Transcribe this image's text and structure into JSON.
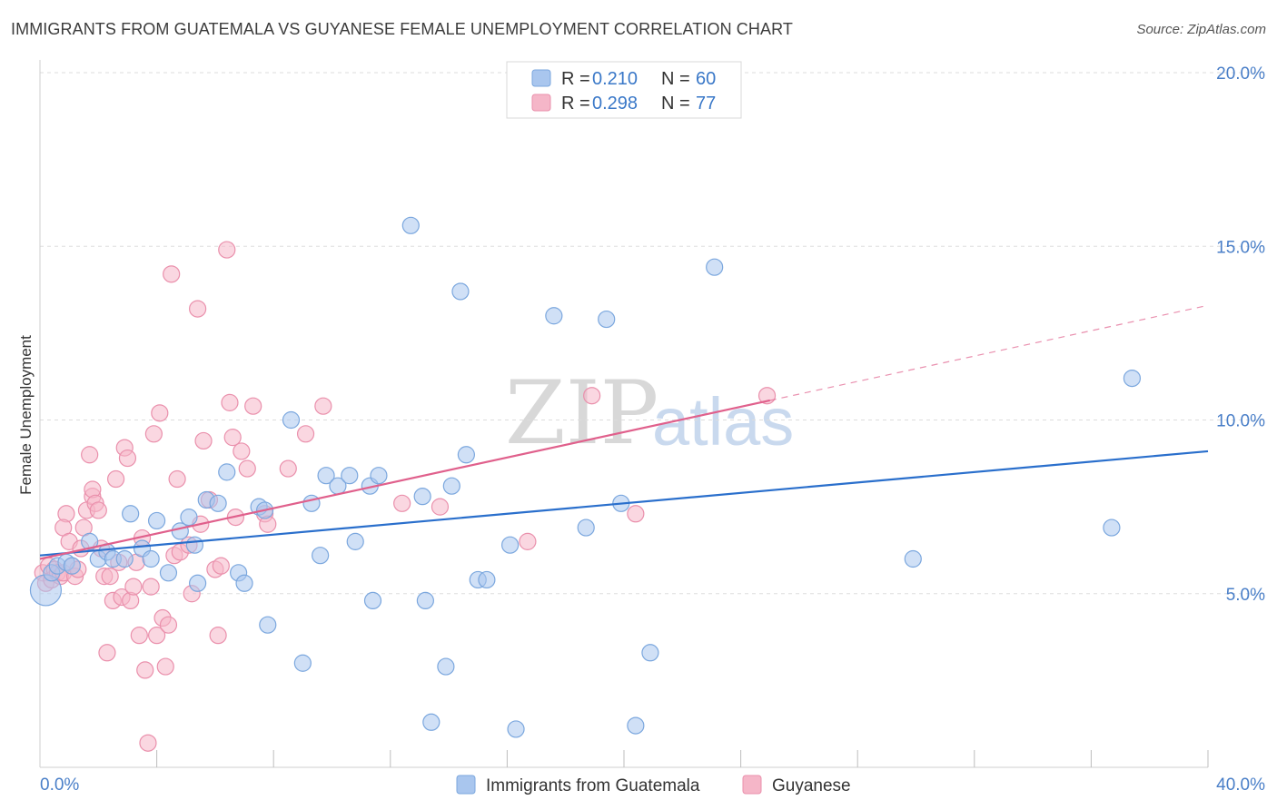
{
  "header": {
    "title": "IMMIGRANTS FROM GUATEMALA VS GUYANESE FEMALE UNEMPLOYMENT CORRELATION CHART",
    "source": "Source: ZipAtlas.com"
  },
  "watermark": {
    "zip": "ZIP",
    "atlas": "atlas"
  },
  "legend": {
    "r_label": "R =",
    "n_label": "N =",
    "rows": [
      {
        "r": "0.210",
        "n": "60",
        "color": "#a9c6ee"
      },
      {
        "r": "0.298",
        "n": "77",
        "color": "#f5b6c8"
      }
    ]
  },
  "colors": {
    "blue_fill": "#a9c6ee",
    "blue_stroke": "#7ba7de",
    "blue_line": "#2a6fcc",
    "pink_fill": "#f5b6c8",
    "pink_stroke": "#ea90ac",
    "pink_line": "#e0608c",
    "grid": "#dddddd",
    "tick_text": "#4a7fc8"
  },
  "chart_data": {
    "type": "scatter",
    "title": "IMMIGRANTS FROM GUATEMALA VS GUYANESE FEMALE UNEMPLOYMENT CORRELATION CHART",
    "xlabel": "",
    "ylabel": "Female Unemployment",
    "xlim": [
      0,
      40
    ],
    "ylim": [
      0,
      20
    ],
    "x_tick_labels": [
      "0.0%",
      "40.0%"
    ],
    "y_ticks": [
      5,
      10,
      15,
      20
    ],
    "y_tick_labels": [
      "5.0%",
      "10.0%",
      "15.0%",
      "20.0%"
    ],
    "grid": true,
    "legend_position": "top-center",
    "series": [
      {
        "name": "Immigrants from Guatemala",
        "color": "#a9c6ee",
        "r": 0.21,
        "n": 60,
        "trend": {
          "x": [
            0,
            40
          ],
          "y": [
            6.1,
            9.1
          ],
          "solid_to": 40
        },
        "points": [
          [
            0.2,
            5.1
          ],
          [
            0.4,
            5.6
          ],
          [
            0.6,
            5.8
          ],
          [
            0.9,
            5.9
          ],
          [
            1.1,
            5.8
          ],
          [
            1.7,
            6.5
          ],
          [
            2.0,
            6.0
          ],
          [
            2.3,
            6.2
          ],
          [
            2.5,
            6.0
          ],
          [
            2.9,
            6.0
          ],
          [
            3.1,
            7.3
          ],
          [
            3.5,
            6.3
          ],
          [
            3.8,
            6.0
          ],
          [
            4.0,
            7.1
          ],
          [
            4.4,
            5.6
          ],
          [
            4.8,
            6.8
          ],
          [
            5.1,
            7.2
          ],
          [
            5.3,
            6.4
          ],
          [
            5.4,
            5.3
          ],
          [
            5.7,
            7.7
          ],
          [
            6.1,
            7.6
          ],
          [
            6.4,
            8.5
          ],
          [
            6.8,
            5.6
          ],
          [
            7.0,
            5.3
          ],
          [
            7.5,
            7.5
          ],
          [
            7.7,
            7.4
          ],
          [
            7.8,
            4.1
          ],
          [
            8.6,
            10.0
          ],
          [
            9.0,
            3.0
          ],
          [
            9.3,
            7.6
          ],
          [
            9.6,
            6.1
          ],
          [
            9.8,
            8.4
          ],
          [
            10.2,
            8.1
          ],
          [
            10.6,
            8.4
          ],
          [
            10.8,
            6.5
          ],
          [
            11.4,
            4.8
          ],
          [
            11.3,
            8.1
          ],
          [
            11.6,
            8.4
          ],
          [
            12.7,
            15.6
          ],
          [
            13.1,
            7.8
          ],
          [
            13.2,
            4.8
          ],
          [
            13.4,
            1.3
          ],
          [
            13.9,
            2.9
          ],
          [
            14.1,
            8.1
          ],
          [
            14.4,
            13.7
          ],
          [
            14.6,
            9.0
          ],
          [
            15.0,
            5.4
          ],
          [
            15.3,
            5.4
          ],
          [
            16.1,
            6.4
          ],
          [
            16.3,
            1.1
          ],
          [
            17.6,
            13.0
          ],
          [
            18.7,
            6.9
          ],
          [
            19.4,
            12.9
          ],
          [
            19.9,
            7.6
          ],
          [
            20.4,
            1.2
          ],
          [
            20.9,
            3.3
          ],
          [
            23.1,
            14.4
          ],
          [
            29.9,
            6.0
          ],
          [
            36.7,
            6.9
          ],
          [
            37.4,
            11.2
          ]
        ]
      },
      {
        "name": "Guyanese",
        "color": "#f5b6c8",
        "r": 0.298,
        "n": 77,
        "trend": {
          "x": [
            0,
            40
          ],
          "y": [
            6.0,
            13.3
          ],
          "solid_to": 25
        },
        "points": [
          [
            0.1,
            5.6
          ],
          [
            0.2,
            5.3
          ],
          [
            0.3,
            5.8
          ],
          [
            0.4,
            5.4
          ],
          [
            0.5,
            5.7
          ],
          [
            0.6,
            5.6
          ],
          [
            0.7,
            5.5
          ],
          [
            0.8,
            5.6
          ],
          [
            0.9,
            7.3
          ],
          [
            0.8,
            6.9
          ],
          [
            1.0,
            6.5
          ],
          [
            1.1,
            5.8
          ],
          [
            1.2,
            5.5
          ],
          [
            1.3,
            5.7
          ],
          [
            1.4,
            6.3
          ],
          [
            1.5,
            6.9
          ],
          [
            1.6,
            7.4
          ],
          [
            1.7,
            9.0
          ],
          [
            1.8,
            7.8
          ],
          [
            1.8,
            8.0
          ],
          [
            1.9,
            7.6
          ],
          [
            2.0,
            7.4
          ],
          [
            2.1,
            6.3
          ],
          [
            2.2,
            5.5
          ],
          [
            2.3,
            3.3
          ],
          [
            2.4,
            5.5
          ],
          [
            2.5,
            4.8
          ],
          [
            2.6,
            8.3
          ],
          [
            2.7,
            5.9
          ],
          [
            2.8,
            4.9
          ],
          [
            2.9,
            9.2
          ],
          [
            3.0,
            8.9
          ],
          [
            3.1,
            4.8
          ],
          [
            3.2,
            5.2
          ],
          [
            3.3,
            5.9
          ],
          [
            3.4,
            3.8
          ],
          [
            3.5,
            6.6
          ],
          [
            3.6,
            2.8
          ],
          [
            3.7,
            0.7
          ],
          [
            3.8,
            5.2
          ],
          [
            3.9,
            9.6
          ],
          [
            4.0,
            3.8
          ],
          [
            4.1,
            10.2
          ],
          [
            4.2,
            4.3
          ],
          [
            4.3,
            2.9
          ],
          [
            4.4,
            4.1
          ],
          [
            4.5,
            14.2
          ],
          [
            4.6,
            6.1
          ],
          [
            4.7,
            8.3
          ],
          [
            4.8,
            6.2
          ],
          [
            5.1,
            6.4
          ],
          [
            5.2,
            5.0
          ],
          [
            5.4,
            13.2
          ],
          [
            5.5,
            7.0
          ],
          [
            5.6,
            9.4
          ],
          [
            5.8,
            7.7
          ],
          [
            6.0,
            5.7
          ],
          [
            6.1,
            3.8
          ],
          [
            6.2,
            5.8
          ],
          [
            6.4,
            14.9
          ],
          [
            6.5,
            10.5
          ],
          [
            6.6,
            9.5
          ],
          [
            6.7,
            7.2
          ],
          [
            6.9,
            9.1
          ],
          [
            7.1,
            8.6
          ],
          [
            7.3,
            10.4
          ],
          [
            7.7,
            7.3
          ],
          [
            7.8,
            7.0
          ],
          [
            8.5,
            8.6
          ],
          [
            9.1,
            9.6
          ],
          [
            9.7,
            10.4
          ],
          [
            12.4,
            7.6
          ],
          [
            13.7,
            7.5
          ],
          [
            16.7,
            6.5
          ],
          [
            18.9,
            10.7
          ],
          [
            20.4,
            7.3
          ],
          [
            24.9,
            10.7
          ]
        ]
      }
    ]
  },
  "bottom_legend": [
    {
      "label": "Immigrants from Guatemala",
      "color": "#a9c6ee"
    },
    {
      "label": "Guyanese",
      "color": "#f5b6c8"
    }
  ]
}
